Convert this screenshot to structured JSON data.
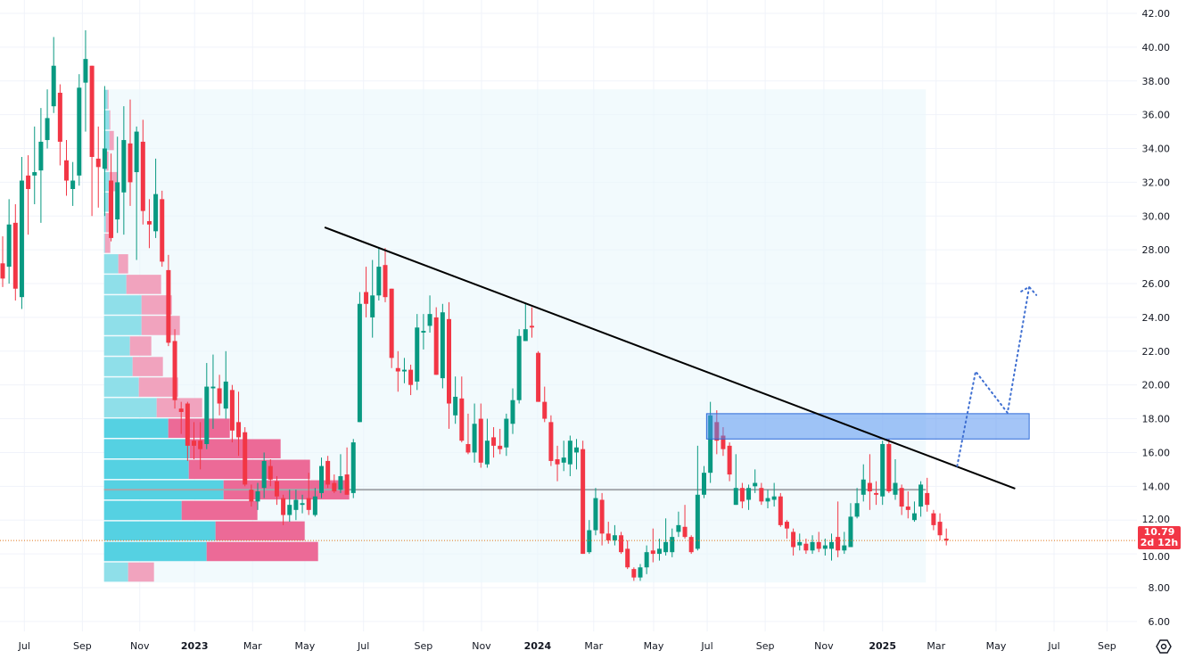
{
  "chart_data": {
    "type": "candlestick",
    "interval": "weekly",
    "colors": {
      "up": "#089981",
      "down": "#f23645",
      "va_up": "#55d1e2",
      "va_down": "#ec6a97",
      "up_light": "#8fdfe9",
      "down_light": "#f1a3be",
      "box": "#4a8cf0",
      "trend": "#000000",
      "projection": "#3f6fd1",
      "last_price": "#f23645"
    },
    "y_axis": {
      "min": 6,
      "max": 42,
      "ticks": [
        "42.00",
        "40.00",
        "38.00",
        "36.00",
        "34.00",
        "32.00",
        "30.00",
        "28.00",
        "26.00",
        "24.00",
        "22.00",
        "20.00",
        "18.00",
        "16.00",
        "14.00",
        "12.00",
        "10.00",
        "8.00",
        "6.00"
      ]
    },
    "x_axis": {
      "ticks": [
        {
          "label": "Jul",
          "week": 3.4,
          "year": false
        },
        {
          "label": "Sep",
          "week": 12.5,
          "year": false
        },
        {
          "label": "Nov",
          "week": 21.5,
          "year": false
        },
        {
          "label": "2023",
          "week": 30.1,
          "year": true
        },
        {
          "label": "Mar",
          "week": 39.2,
          "year": false
        },
        {
          "label": "May",
          "week": 47.4,
          "year": false
        },
        {
          "label": "Jul",
          "week": 56.6,
          "year": false
        },
        {
          "label": "Sep",
          "week": 66.0,
          "year": false
        },
        {
          "label": "Nov",
          "week": 75.1,
          "year": false
        },
        {
          "label": "2024",
          "week": 83.9,
          "year": true
        },
        {
          "label": "Mar",
          "week": 92.7,
          "year": false
        },
        {
          "label": "May",
          "week": 102.1,
          "year": false
        },
        {
          "label": "Jul",
          "week": 110.5,
          "year": false
        },
        {
          "label": "Sep",
          "week": 119.6,
          "year": false
        },
        {
          "label": "Nov",
          "week": 128.8,
          "year": false
        },
        {
          "label": "2025",
          "week": 138.0,
          "year": true
        },
        {
          "label": "Mar",
          "week": 146.4,
          "year": false
        },
        {
          "label": "May",
          "week": 155.8,
          "year": false
        },
        {
          "label": "Jul",
          "week": 164.9,
          "year": false
        },
        {
          "label": "Sep",
          "week": 173.2,
          "year": false
        }
      ]
    },
    "candles": [
      [
        27.2,
        28.8,
        25.8,
        26.3
      ],
      [
        27.0,
        31,
        26,
        29.5
      ],
      [
        29.6,
        30.7,
        25,
        25.7
      ],
      [
        25.2,
        33.5,
        24.5,
        32.1
      ],
      [
        32.4,
        33.6,
        28.9,
        31.6
      ],
      [
        32.4,
        35.3,
        30.7,
        32.6
      ],
      [
        32.7,
        36.4,
        29.6,
        34.4
      ],
      [
        34.5,
        37.5,
        34,
        35.8
      ],
      [
        36.5,
        40.6,
        36.1,
        38.9
      ],
      [
        37.3,
        37.8,
        33,
        34.4
      ],
      [
        33.3,
        34.5,
        31.2,
        32.1
      ],
      [
        31.6,
        33.2,
        30.6,
        32.1
      ],
      [
        32.4,
        38.4,
        31.8,
        37.6
      ],
      [
        37.9,
        41,
        35,
        39.3
      ],
      [
        38.9,
        38.9,
        30,
        33.5
      ],
      [
        33.4,
        35.3,
        30.5,
        32.9
      ],
      [
        32.8,
        37.7,
        30,
        34.0
      ],
      [
        32.1,
        33.7,
        28.5,
        28.7
      ],
      [
        29.8,
        34.7,
        29,
        32.0
      ],
      [
        31.4,
        36.5,
        28.9,
        34.5
      ],
      [
        34.3,
        36.9,
        30.6,
        32.0
      ],
      [
        32.6,
        35.3,
        27.4,
        35.0
      ],
      [
        34.4,
        35.7,
        29.5,
        30.3
      ],
      [
        29.7,
        31.0,
        28.1,
        29.5
      ],
      [
        29.1,
        33.4,
        28.7,
        31.3
      ],
      [
        31.0,
        31.5,
        27,
        27.3
      ],
      [
        26.8,
        27.7,
        22.3,
        22.5
      ],
      [
        22.6,
        23.3,
        18.6,
        19.1
      ],
      [
        18.6,
        19,
        17.1,
        18.4
      ],
      [
        18.9,
        19,
        15.5,
        16.4
      ],
      [
        16.7,
        17.8,
        15.6,
        16.4
      ],
      [
        16.7,
        17.8,
        15,
        16.2
      ],
      [
        16.5,
        21.3,
        16.2,
        19.9
      ],
      [
        19.8,
        21.8,
        17.4,
        19.9
      ],
      [
        19.8,
        20.6,
        18.2,
        18.9
      ],
      [
        18.6,
        22,
        18,
        20.2
      ],
      [
        19.7,
        20,
        16.6,
        17.3
      ],
      [
        17.8,
        19.6,
        15.8,
        16.9
      ],
      [
        17.2,
        17.5,
        14,
        14.1
      ],
      [
        13.8,
        14.1,
        12.8,
        13.1
      ],
      [
        13.1,
        14.2,
        12.6,
        13.7
      ],
      [
        13.9,
        16,
        13.3,
        15.5
      ],
      [
        15.2,
        15.6,
        14,
        14.4
      ],
      [
        14.3,
        14.6,
        12.9,
        13.4
      ],
      [
        13.3,
        13.5,
        11.7,
        12.3
      ],
      [
        12.3,
        13.8,
        11.9,
        12.9
      ],
      [
        12.6,
        13.8,
        12.0,
        13.2
      ],
      [
        12.9,
        13.5,
        12.4,
        13.0
      ],
      [
        13.3,
        14.8,
        12.3,
        12.6
      ],
      [
        12.3,
        13.9,
        12.2,
        13.4
      ],
      [
        13.6,
        15.7,
        13.3,
        15.2
      ],
      [
        15.5,
        15.8,
        13.9,
        14.1
      ],
      [
        14.2,
        14.7,
        13.6,
        13.7
      ],
      [
        13.8,
        15.9,
        13.6,
        14.6
      ],
      [
        14.7,
        16.3,
        13.5,
        13.5
      ],
      [
        13.6,
        16.8,
        13.3,
        16.6
      ],
      [
        17.8,
        25.5,
        17.8,
        24.8
      ],
      [
        25.5,
        27,
        24,
        24.8
      ],
      [
        24.0,
        27.4,
        22.8,
        25.3
      ],
      [
        25.3,
        28.1,
        25,
        27.0
      ],
      [
        27.1,
        28.1,
        24.9,
        25.2
      ],
      [
        25.7,
        25.7,
        21,
        21.6
      ],
      [
        21.0,
        22,
        19.6,
        20.8
      ],
      [
        20.8,
        21.6,
        20.1,
        20.9
      ],
      [
        20.9,
        21.2,
        19.4,
        20.0
      ],
      [
        20.2,
        24.2,
        19.7,
        23.4
      ],
      [
        23.1,
        24.2,
        22.1,
        23.2
      ],
      [
        23.5,
        25.3,
        23.1,
        24.2
      ],
      [
        24.0,
        24.6,
        20.6,
        20.6
      ],
      [
        20.4,
        24.8,
        19.8,
        24.3
      ],
      [
        23.9,
        24.9,
        17.4,
        18.9
      ],
      [
        18.2,
        20.5,
        17.7,
        19.3
      ],
      [
        19.2,
        20.5,
        16.6,
        16.7
      ],
      [
        16.5,
        18.3,
        15.9,
        16.0
      ],
      [
        16.0,
        18.9,
        15.4,
        17.7
      ],
      [
        18.0,
        18.9,
        15.1,
        15.4
      ],
      [
        15.3,
        18.0,
        15.1,
        16.7
      ],
      [
        16.9,
        17.5,
        15.7,
        16.4
      ],
      [
        16.4,
        17.4,
        15.9,
        16.2
      ],
      [
        16.3,
        18.3,
        15.8,
        18.0
      ],
      [
        17.7,
        19.8,
        17.1,
        19.1
      ],
      [
        19.1,
        23.3,
        18.9,
        22.9
      ],
      [
        22.6,
        24.8,
        22.6,
        23.3
      ],
      [
        23.5,
        24.6,
        22.8,
        23.4
      ],
      [
        21.9,
        22.0,
        19.0,
        19.0
      ],
      [
        19.0,
        19.9,
        17.8,
        18.0
      ],
      [
        17.8,
        18.2,
        15.2,
        15.5
      ],
      [
        15.6,
        16.4,
        14.3,
        15.3
      ],
      [
        15.4,
        16.7,
        14.9,
        15.7
      ],
      [
        15.3,
        17.0,
        14.6,
        16.7
      ],
      [
        16.0,
        16.8,
        15.0,
        16.3
      ],
      [
        16.2,
        16.7,
        10.0,
        10.0
      ],
      [
        10.1,
        12.0,
        10.0,
        11.4
      ],
      [
        11.4,
        13.9,
        11.1,
        13.3
      ],
      [
        13.2,
        13.6,
        10.5,
        11.2
      ],
      [
        11.2,
        11.9,
        10.6,
        10.8
      ],
      [
        10.8,
        11.7,
        10.5,
        11.1
      ],
      [
        11.1,
        11.3,
        10.0,
        10.1
      ],
      [
        10.3,
        10.8,
        9.1,
        9.2
      ],
      [
        9.1,
        9.2,
        8.4,
        8.6
      ],
      [
        8.6,
        9.4,
        8.4,
        9.2
      ],
      [
        9.2,
        10.5,
        8.8,
        10.1
      ],
      [
        10.2,
        11.5,
        9.5,
        10.0
      ],
      [
        10.0,
        10.9,
        9.6,
        10.3
      ],
      [
        10.1,
        12.1,
        9.9,
        10.7
      ],
      [
        10.1,
        11.5,
        9.8,
        11.0
      ],
      [
        11.3,
        12.5,
        11,
        11.7
      ],
      [
        11.6,
        12.9,
        10.9,
        11.0
      ],
      [
        11.0,
        11.1,
        10.0,
        10.1
      ],
      [
        10.3,
        16.4,
        10.2,
        13.5
      ],
      [
        13.5,
        15.2,
        13.3,
        14.8
      ],
      [
        14.8,
        19.0,
        14.2,
        18.2
      ],
      [
        17.8,
        18.5,
        15.9,
        16.7
      ],
      [
        17.0,
        17.5,
        15.8,
        16.2
      ],
      [
        16.4,
        16.6,
        14.3,
        14.7
      ],
      [
        12.9,
        15.9,
        12.9,
        13.9
      ],
      [
        13.9,
        14.2,
        12.7,
        13.1
      ],
      [
        13.2,
        14.1,
        12.6,
        13.9
      ],
      [
        14.0,
        15,
        13.6,
        14.2
      ],
      [
        13.9,
        14.2,
        12.9,
        13.1
      ],
      [
        13.1,
        13.8,
        12.7,
        13.3
      ],
      [
        13.2,
        14.2,
        12.8,
        13.4
      ],
      [
        13.4,
        13.6,
        11.6,
        11.7
      ],
      [
        11.9,
        12.0,
        10.9,
        11.5
      ],
      [
        11.3,
        11.5,
        9.9,
        10.4
      ],
      [
        10.5,
        11.2,
        10.2,
        10.7
      ],
      [
        10.6,
        10.9,
        10.0,
        10.2
      ],
      [
        10.2,
        11.1,
        10.0,
        10.7
      ],
      [
        10.7,
        11.3,
        10.1,
        10.3
      ],
      [
        10.3,
        10.9,
        9.9,
        10.5
      ],
      [
        10.3,
        11.2,
        9.6,
        10.7
      ],
      [
        11.0,
        13.1,
        9.8,
        10.2
      ],
      [
        10.2,
        11.3,
        10.0,
        10.5
      ],
      [
        10.4,
        13.0,
        10.4,
        12.2
      ],
      [
        12.2,
        13.9,
        12.1,
        13.0
      ],
      [
        13.5,
        15.3,
        13.1,
        14.4
      ],
      [
        14.2,
        15.9,
        12.6,
        13.7
      ],
      [
        13.6,
        14.3,
        12.9,
        13.5
      ],
      [
        13.4,
        16.7,
        12.9,
        16.5
      ],
      [
        16.5,
        16.8,
        13.6,
        13.7
      ],
      [
        13.5,
        15.6,
        13.2,
        14.2
      ],
      [
        13.9,
        14.1,
        12.3,
        12.8
      ],
      [
        12.8,
        13.7,
        12.1,
        12.6
      ],
      [
        12.0,
        13.1,
        11.9,
        12.4
      ],
      [
        12.8,
        14.3,
        12.2,
        14.1
      ],
      [
        13.6,
        14.5,
        12.5,
        12.9
      ],
      [
        12.4,
        12.6,
        11.4,
        11.7
      ],
      [
        11.9,
        12.4,
        10.8,
        11.1
      ],
      [
        10.9,
        11.5,
        10.5,
        10.79
      ]
    ],
    "volume_profile": {
      "start_week": 15.9,
      "end_week": 144.8,
      "price_low": 8.3,
      "price_high": 37.5,
      "poc_price": 13.8,
      "rows_top_to_bottom": [
        {
          "up": 4,
          "down": 1,
          "va": false
        },
        {
          "up": 6,
          "down": 1,
          "va": false
        },
        {
          "up": 6,
          "down": 5,
          "va": false
        },
        {
          "up": 3,
          "down": 2,
          "va": false
        },
        {
          "up": 6,
          "down": 9,
          "va": false
        },
        {
          "up": 5,
          "down": 3,
          "va": false
        },
        {
          "up": 2,
          "down": 6,
          "va": false
        },
        {
          "up": 1,
          "down": 6,
          "va": false
        },
        {
          "up": 16,
          "down": 11,
          "va": false
        },
        {
          "up": 25,
          "down": 39,
          "va": false
        },
        {
          "up": 42,
          "down": 34,
          "va": false
        },
        {
          "up": 42,
          "down": 43,
          "va": false
        },
        {
          "up": 29,
          "down": 24,
          "va": false
        },
        {
          "up": 32,
          "down": 34,
          "va": false
        },
        {
          "up": 39,
          "down": 44,
          "va": false
        },
        {
          "up": 59,
          "down": 51,
          "va": false
        },
        {
          "up": 72,
          "down": 69,
          "va": true
        },
        {
          "up": 96,
          "down": 102,
          "va": true
        },
        {
          "up": 95,
          "down": 136,
          "va": true
        },
        {
          "up": 134,
          "down": 141,
          "va": true
        },
        {
          "up": 87,
          "down": 85,
          "va": true
        },
        {
          "up": 125,
          "down": 100,
          "va": true
        },
        {
          "up": 115,
          "down": 125,
          "va": true
        },
        {
          "up": 27,
          "down": 29,
          "va": false
        }
      ]
    },
    "trendline": {
      "from": {
        "week": 50.5,
        "price": 29.33
      },
      "to": {
        "week": 158.8,
        "price": 13.86
      }
    },
    "resistance_box": {
      "from_week": 110.4,
      "to_week": 161.0,
      "price_top": 18.3,
      "price_bottom": 16.8
    },
    "projection_path": [
      {
        "week": 149.7,
        "price": 15.2
      },
      {
        "week": 152.6,
        "price": 20.8
      },
      {
        "week": 157.6,
        "price": 18.35
      },
      {
        "week": 161.0,
        "price": 25.8
      }
    ],
    "last_price": {
      "value": "10.79",
      "countdown": "2d 12h",
      "price": 10.79
    }
  }
}
